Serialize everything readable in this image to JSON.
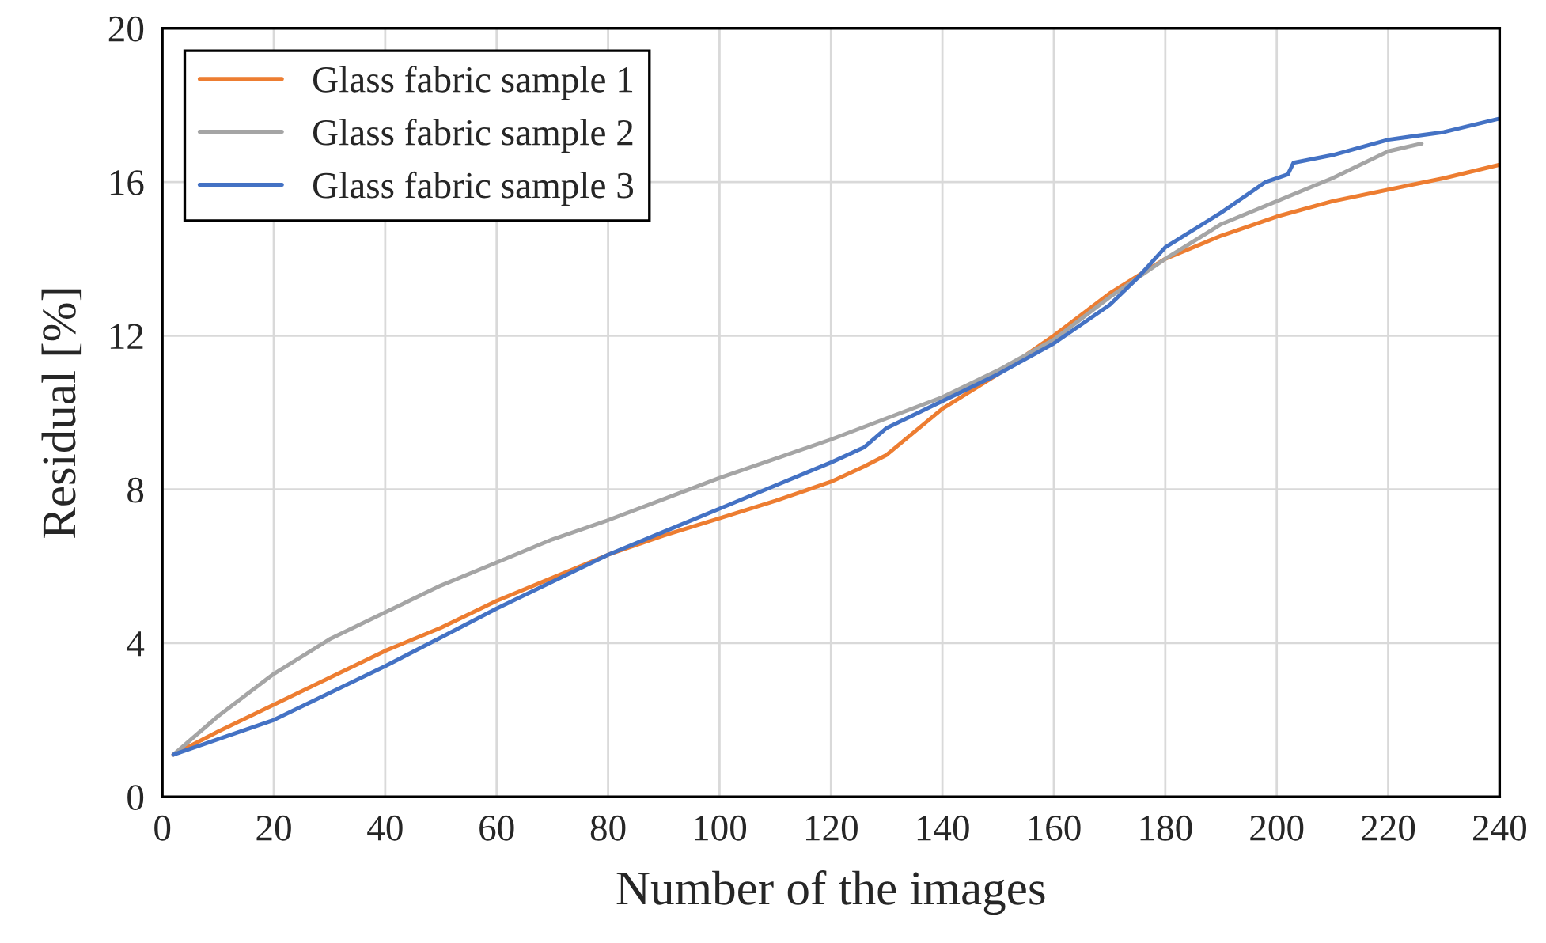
{
  "chart_data": {
    "type": "line",
    "xlabel": "Number of the images",
    "ylabel": "Residual [%]",
    "xlim": [
      0,
      240
    ],
    "xticks": [
      0,
      20,
      40,
      60,
      80,
      100,
      120,
      140,
      160,
      180,
      200,
      220,
      240
    ],
    "ylim": [
      0,
      20
    ],
    "yticks": [
      0,
      4,
      8,
      12,
      16,
      20
    ],
    "grid": true,
    "legend": "top left",
    "series": [
      {
        "name": "Glass fabric sample 1",
        "color": "#ed7d31",
        "x": [
          2,
          10,
          20,
          30,
          40,
          50,
          60,
          70,
          80,
          90,
          100,
          110,
          120,
          126,
          130,
          140,
          150,
          160,
          170,
          180,
          190,
          200,
          210,
          220,
          230,
          240
        ],
        "values": [
          1.1,
          1.7,
          2.4,
          3.1,
          3.8,
          4.4,
          5.1,
          5.7,
          6.3,
          6.8,
          7.25,
          7.7,
          8.2,
          8.6,
          8.9,
          10.1,
          11.0,
          12.0,
          13.1,
          14.0,
          14.6,
          15.1,
          15.5,
          15.8,
          16.1,
          16.45
        ]
      },
      {
        "name": "Glass fabric sample 2",
        "color": "#a5a5a5",
        "x": [
          2,
          10,
          20,
          30,
          40,
          50,
          60,
          70,
          80,
          90,
          100,
          110,
          120,
          130,
          140,
          150,
          160,
          170,
          180,
          190,
          200,
          210,
          220,
          226
        ],
        "values": [
          1.1,
          2.1,
          3.2,
          4.1,
          4.8,
          5.5,
          6.1,
          6.7,
          7.2,
          7.75,
          8.3,
          8.8,
          9.3,
          9.85,
          10.4,
          11.1,
          11.9,
          13.0,
          14.0,
          14.9,
          15.5,
          16.1,
          16.8,
          17.0
        ]
      },
      {
        "name": "Glass fabric sample 3",
        "color": "#4472c4",
        "x": [
          2,
          10,
          20,
          30,
          40,
          50,
          60,
          70,
          80,
          90,
          100,
          110,
          120,
          126,
          130,
          140,
          150,
          160,
          170,
          175,
          180,
          190,
          198,
          202,
          203,
          210,
          220,
          230,
          240
        ],
        "values": [
          1.1,
          1.5,
          2.0,
          2.7,
          3.4,
          4.15,
          4.9,
          5.6,
          6.3,
          6.9,
          7.5,
          8.1,
          8.7,
          9.1,
          9.6,
          10.3,
          11.0,
          11.8,
          12.8,
          13.5,
          14.3,
          15.2,
          16.0,
          16.2,
          16.5,
          16.7,
          17.1,
          17.3,
          17.65
        ]
      }
    ]
  }
}
